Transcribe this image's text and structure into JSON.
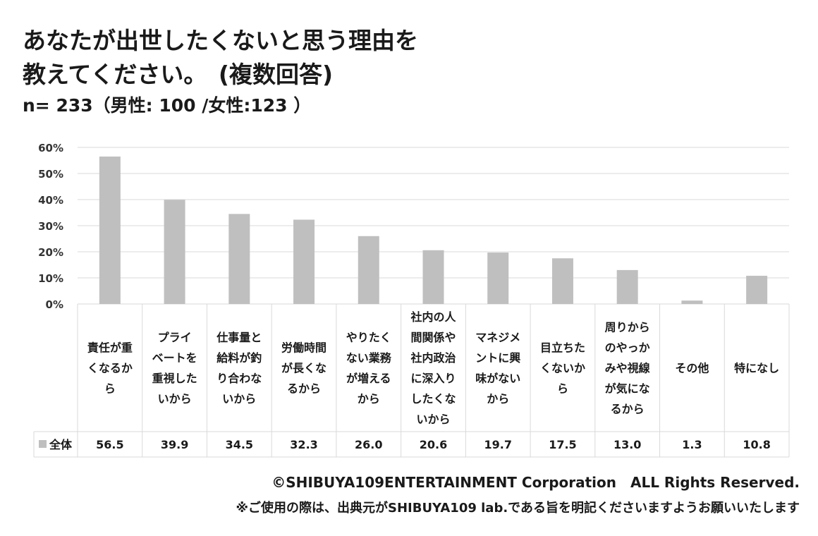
{
  "header": {
    "title_line1": "あなたが出世したくないと思う理由を",
    "title_line2": "教えてください。　(複数回答)",
    "sample": "n= 233（男性: 100 /女性:123 ）"
  },
  "footer": {
    "copyright": "©SHIBUYA109ENTERTAINMENT Corporation　ALL Rights Reserved.",
    "notice": "※ご使用の際は、出典元がSHIBUYA109 lab.である旨を明記くださいますようお願いいたします"
  },
  "colors": {
    "bar": "#bfbfbf",
    "grid": "#d9d9d9",
    "text": "#1a1a1a"
  },
  "chart_data": {
    "type": "bar",
    "ylim": [
      0,
      60
    ],
    "yticks": [
      "0%",
      "10%",
      "20%",
      "30%",
      "40%",
      "50%",
      "60%"
    ],
    "grid": true,
    "legend_position": "bottom-left (data table)",
    "categories": [
      [
        "責任が重",
        "くなるか",
        "ら"
      ],
      [
        "プライ",
        "ベートを",
        "重視した",
        "いから"
      ],
      [
        "仕事量と",
        "給料が釣",
        "り合わな",
        "いから"
      ],
      [
        "労働時間",
        "が長くな",
        "るから"
      ],
      [
        "やりたく",
        "ない業務",
        "が増える",
        "から"
      ],
      [
        "社内の人",
        "間関係や",
        "社内政治",
        "に深入り",
        "したくな",
        "いから"
      ],
      [
        "マネジメ",
        "ントに興",
        "味がない",
        "から"
      ],
      [
        "目立ちた",
        "くないか",
        "ら"
      ],
      [
        "周りから",
        "のやっか",
        "みや視線",
        "が気にな",
        "るから"
      ],
      [
        "その他"
      ],
      [
        "特になし"
      ]
    ],
    "series": [
      {
        "name": "全体",
        "values": [
          56.5,
          39.9,
          34.5,
          32.3,
          26.0,
          20.6,
          19.7,
          17.5,
          13.0,
          1.3,
          10.8
        ],
        "labels": [
          "56.5",
          "39.9",
          "34.5",
          "32.3",
          "26.0",
          "20.6",
          "19.7",
          "17.5",
          "13.0",
          "1.3",
          "10.8"
        ]
      }
    ]
  }
}
